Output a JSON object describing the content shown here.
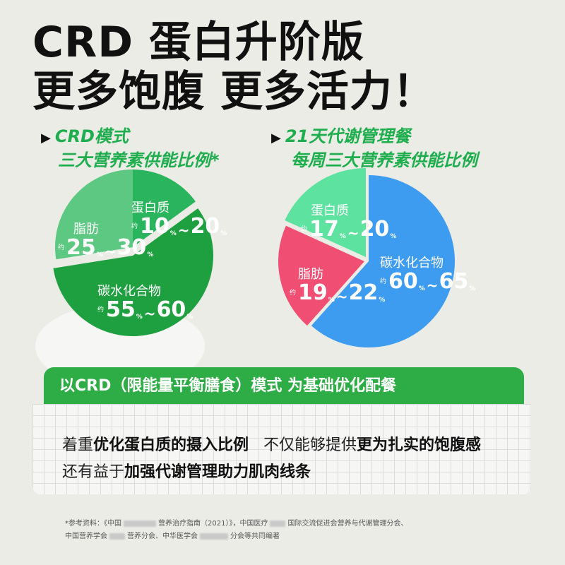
{
  "headline": {
    "line1": "CRD 蛋白升阶版",
    "line2": "更多饱腹  更多活力！"
  },
  "left_section": {
    "title_line1": "CRD模式",
    "title_line2": "三大营养素供能比例*",
    "slices": [
      {
        "name": "蛋白质",
        "min": 10,
        "max": 20,
        "color": "#2bb45e"
      },
      {
        "name": "脂肪",
        "min": 25,
        "max": 30,
        "color": "#5cc882"
      },
      {
        "name": "碳水化合物",
        "min": 55,
        "max": 60,
        "color": "#1fa040"
      }
    ]
  },
  "right_section": {
    "title_line1": "21天代谢管理餐",
    "title_line2": "每周三大营养素供能比例",
    "slices": [
      {
        "name": "蛋白质",
        "min": 17,
        "max": 20,
        "color": "#5ee2a0"
      },
      {
        "name": "脂肪",
        "min": 19,
        "max": 22,
        "color": "#f04e72"
      },
      {
        "name": "碳水化合物",
        "min": 60,
        "max": 65,
        "color": "#3d9bf0"
      }
    ]
  },
  "labels": {
    "approx": "约",
    "pct": "%",
    "tilde": "~"
  },
  "banner": {
    "text": "以CRD（限能量平衡膳食）模式 为基础优化配餐"
  },
  "card": {
    "line1_a": "着重",
    "line1_b": "优化蛋白质的摄入比例",
    "line1_c": "不仅能够提供",
    "line1_d": "更为扎实的饱腹感",
    "line2_a": "还有益于",
    "line2_b": "加强代谢管理助力肌肉线条"
  },
  "footnote": {
    "line1_a": "*参考资料：《中国",
    "line1_b": "营养治疗指南（2021）》，中国医疗",
    "line1_c": "国际交流促进会营养与代谢管理分会、",
    "line2_a": "中国营养学会",
    "line2_b": "营养分会、中华医学会",
    "line2_c": "分会等共同编著"
  }
}
